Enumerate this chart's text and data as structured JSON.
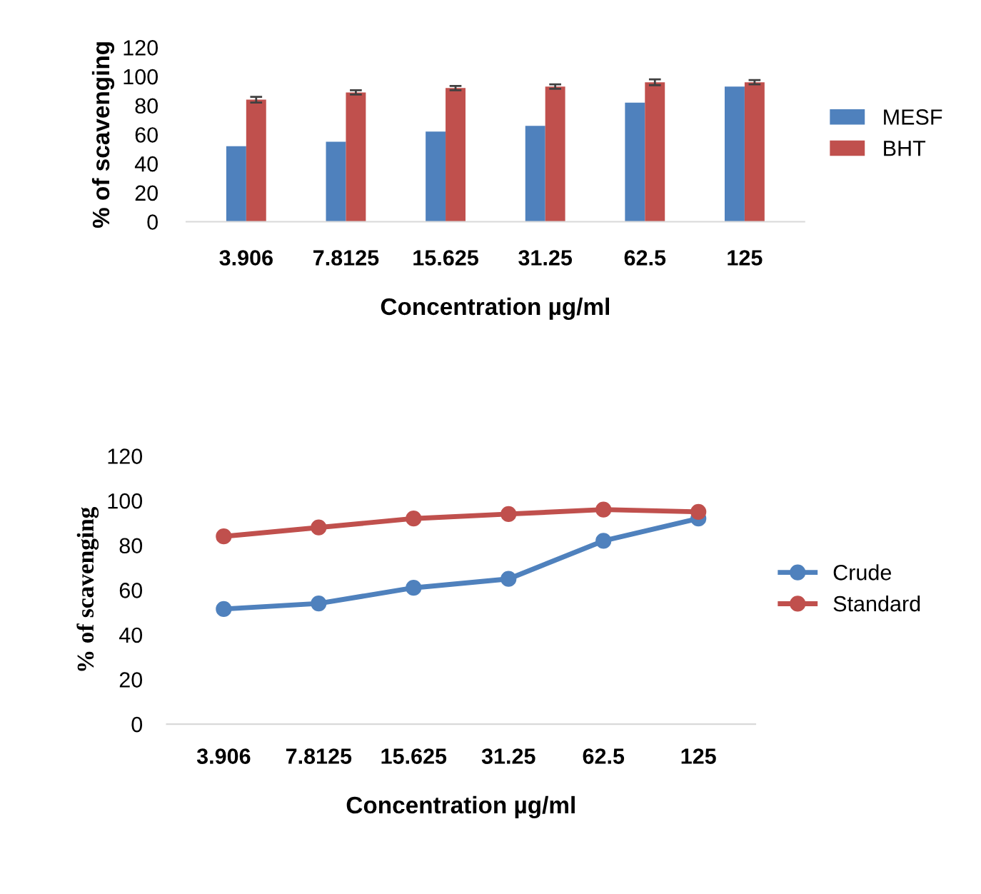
{
  "chart_data": [
    {
      "type": "bar",
      "xlabel": "Concentration µg/ml",
      "ylabel": "% of scavenging",
      "categories": [
        "3.906",
        "7.8125",
        "15.625",
        "31.25",
        "62.5",
        "125"
      ],
      "series": [
        {
          "name": "MESF",
          "color": "#4f81bd",
          "values": [
            52,
            55,
            62,
            66,
            82,
            93
          ]
        },
        {
          "name": "BHT",
          "color": "#c0504d",
          "values": [
            84,
            89,
            92,
            93,
            96,
            96
          ],
          "errors": [
            2,
            1.5,
            1.5,
            1.5,
            2,
            1.5
          ]
        }
      ],
      "ylim": [
        0,
        120
      ],
      "yticks": [
        0,
        20,
        40,
        60,
        80,
        100,
        120
      ],
      "grid": false,
      "legend": "right"
    },
    {
      "type": "line",
      "xlabel": "Concentration µg/ml",
      "ylabel": "% of scavenging",
      "categories": [
        "3.906",
        "7.8125",
        "15.625",
        "31.25",
        "62.5",
        "125"
      ],
      "series": [
        {
          "name": "Crude",
          "color": "#4f81bd",
          "values": [
            51.5,
            54,
            61,
            65,
            82,
            92
          ]
        },
        {
          "name": "Standard",
          "color": "#c0504d",
          "values": [
            84,
            88,
            92,
            94,
            96,
            95
          ]
        }
      ],
      "ylim": [
        0,
        120
      ],
      "yticks": [
        0,
        20,
        40,
        60,
        80,
        100,
        120
      ],
      "grid": false,
      "legend": "right",
      "marker": "circle",
      "line_style": "solid"
    }
  ]
}
